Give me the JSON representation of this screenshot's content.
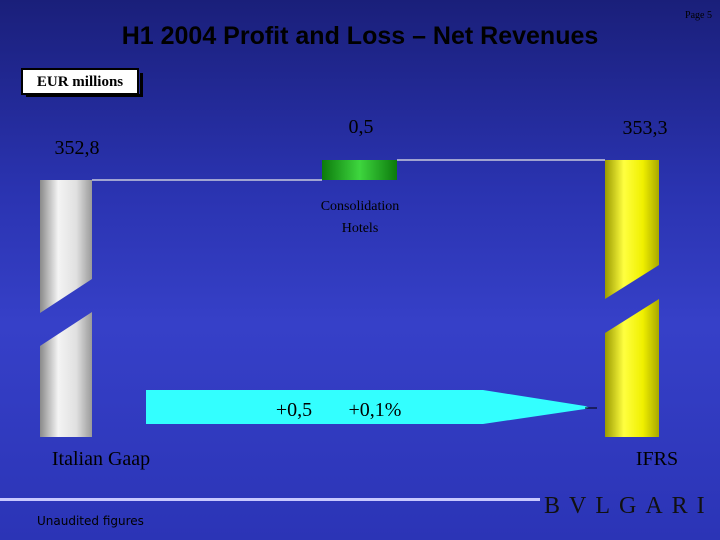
{
  "page_label": "Page 5",
  "title": "H1 2004 Profit and Loss – Net Revenues",
  "unit_label": "EUR millions",
  "footer_note": "Unaudited figures",
  "brand_logo": "BVLGARI",
  "chart_data": {
    "type": "bar",
    "categories": [
      "Italian Gaap",
      "Consolidation Hotels",
      "IFRS"
    ],
    "values": [
      352.8,
      0.5,
      353.3
    ],
    "value_labels": [
      "352,8",
      "0,5",
      "353,3"
    ],
    "bar_colors": [
      "#c8c8c8",
      "#2ca02c",
      "#e6e600"
    ],
    "axis_break": true,
    "variation": {
      "absolute_label": "+0,5",
      "percent_label": "+0,1%",
      "arrow_color": "#33ffff"
    }
  }
}
